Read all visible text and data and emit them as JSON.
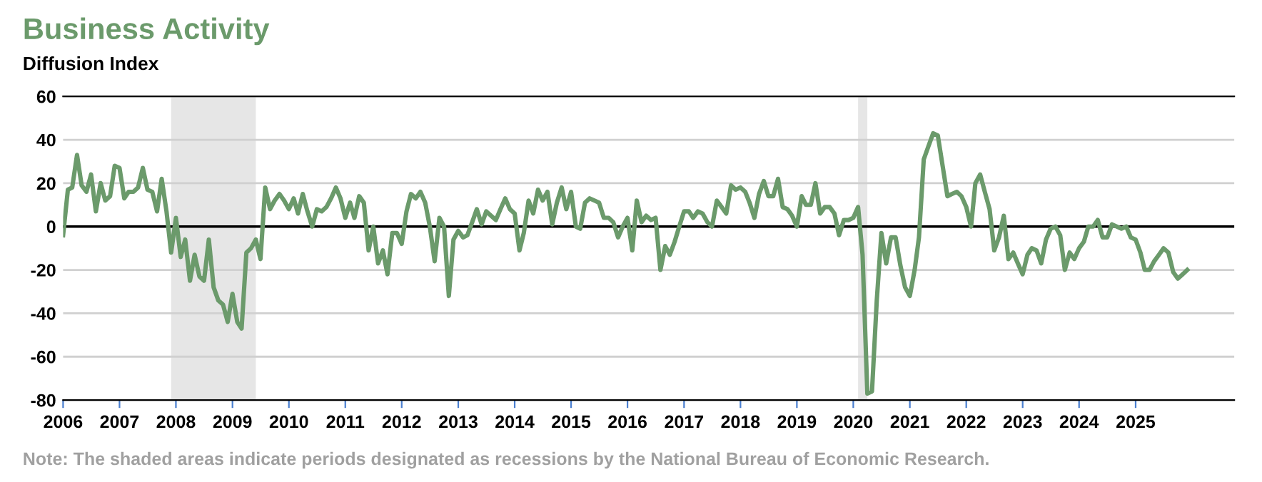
{
  "chart_data": {
    "type": "line",
    "title": "Business Activity",
    "subtitle": "Diffusion Index",
    "annotations": [
      "Note: The shaded areas indicate periods designated as recessions by the National Bureau of Economic Research."
    ],
    "x": [
      "2006-01",
      "2006-02",
      "2006-03",
      "2006-04",
      "2006-05",
      "2006-06",
      "2006-07",
      "2006-08",
      "2006-09",
      "2006-10",
      "2006-11",
      "2006-12",
      "2007-01",
      "2007-02",
      "2007-03",
      "2007-04",
      "2007-05",
      "2007-06",
      "2007-07",
      "2007-08",
      "2007-09",
      "2007-10",
      "2007-11",
      "2007-12",
      "2008-01",
      "2008-02",
      "2008-03",
      "2008-04",
      "2008-05",
      "2008-06",
      "2008-07",
      "2008-08",
      "2008-09",
      "2008-10",
      "2008-11",
      "2008-12",
      "2009-01",
      "2009-02",
      "2009-03",
      "2009-04",
      "2009-05",
      "2009-06",
      "2009-07",
      "2009-08",
      "2009-09",
      "2009-10",
      "2009-11",
      "2009-12",
      "2010-01",
      "2010-02",
      "2010-03",
      "2010-04",
      "2010-05",
      "2010-06",
      "2010-07",
      "2010-08",
      "2010-09",
      "2010-10",
      "2010-11",
      "2010-12",
      "2011-01",
      "2011-02",
      "2011-03",
      "2011-04",
      "2011-05",
      "2011-06",
      "2011-07",
      "2011-08",
      "2011-09",
      "2011-10",
      "2011-11",
      "2011-12",
      "2012-01",
      "2012-02",
      "2012-03",
      "2012-04",
      "2012-05",
      "2012-06",
      "2012-07",
      "2012-08",
      "2012-09",
      "2012-10",
      "2012-11",
      "2012-12",
      "2013-01",
      "2013-02",
      "2013-03",
      "2013-04",
      "2013-05",
      "2013-06",
      "2013-07",
      "2013-08",
      "2013-09",
      "2013-10",
      "2013-11",
      "2013-12",
      "2014-01",
      "2014-02",
      "2014-03",
      "2014-04",
      "2014-05",
      "2014-06",
      "2014-07",
      "2014-08",
      "2014-09",
      "2014-10",
      "2014-11",
      "2014-12",
      "2015-01",
      "2015-02",
      "2015-03",
      "2015-04",
      "2015-05",
      "2015-06",
      "2015-07",
      "2015-08",
      "2015-09",
      "2015-10",
      "2015-11",
      "2015-12",
      "2016-01",
      "2016-02",
      "2016-03",
      "2016-04",
      "2016-05",
      "2016-06",
      "2016-07",
      "2016-08",
      "2016-09",
      "2016-10",
      "2016-11",
      "2016-12",
      "2017-01",
      "2017-02",
      "2017-03",
      "2017-04",
      "2017-05",
      "2017-06",
      "2017-07",
      "2017-08",
      "2017-09",
      "2017-10",
      "2017-11",
      "2017-12",
      "2018-01",
      "2018-02",
      "2018-03",
      "2018-04",
      "2018-05",
      "2018-06",
      "2018-07",
      "2018-08",
      "2018-09",
      "2018-10",
      "2018-11",
      "2018-12",
      "2019-01",
      "2019-02",
      "2019-03",
      "2019-04",
      "2019-05",
      "2019-06",
      "2019-07",
      "2019-08",
      "2019-09",
      "2019-10",
      "2019-11",
      "2019-12",
      "2020-01",
      "2020-02",
      "2020-03",
      "2020-04",
      "2020-05",
      "2020-06",
      "2020-07",
      "2020-08",
      "2020-09",
      "2020-10",
      "2020-11",
      "2020-12",
      "2021-01",
      "2021-02",
      "2021-03",
      "2021-04",
      "2021-05",
      "2021-06",
      "2021-07",
      "2021-08",
      "2021-09",
      "2021-10",
      "2021-11",
      "2021-12",
      "2022-01",
      "2022-02",
      "2022-03",
      "2022-04",
      "2022-05",
      "2022-06",
      "2022-07",
      "2022-08",
      "2022-09",
      "2022-10",
      "2022-11",
      "2022-12",
      "2023-01",
      "2023-02",
      "2023-03",
      "2023-04",
      "2023-05",
      "2023-06",
      "2023-07",
      "2023-08",
      "2023-09",
      "2023-10",
      "2023-11",
      "2023-12",
      "2024-01",
      "2024-02",
      "2024-03",
      "2024-04",
      "2024-05",
      "2024-06",
      "2024-07",
      "2024-08",
      "2024-09",
      "2024-10",
      "2024-11",
      "2024-12",
      "2025-01",
      "2025-02",
      "2025-03",
      "2025-04",
      "2025-05",
      "2025-06",
      "2025-07",
      "2025-08",
      "2025-09",
      "2025-10",
      "2025-11",
      "2025-12"
    ],
    "series": [
      {
        "color": "#6b9a6b",
        "values": [
          -4,
          17,
          18,
          33,
          19,
          16,
          24,
          7,
          20,
          12,
          14,
          28,
          27,
          13,
          16,
          16,
          18,
          27,
          17,
          16,
          7,
          22,
          7,
          -12,
          4,
          -14,
          -6,
          -25,
          -13,
          -23,
          -25,
          -6,
          -28,
          -34,
          -36,
          -44,
          -31,
          -44,
          -47,
          -12,
          -10,
          -6,
          -15,
          18,
          8,
          12,
          15,
          12,
          8,
          13,
          6,
          15,
          7,
          0,
          8,
          7,
          9,
          13,
          18,
          13,
          4,
          11,
          4,
          14,
          11,
          -11,
          0,
          -17,
          -11,
          -22,
          -3,
          -3,
          -8,
          7,
          15,
          13,
          16,
          11,
          0,
          -16,
          4,
          0,
          -32,
          -6,
          -2,
          -5,
          -4,
          2,
          8,
          1,
          7,
          5,
          3,
          8,
          13,
          8,
          6,
          -11,
          -3,
          12,
          6,
          17,
          12,
          16,
          1,
          11,
          18,
          8,
          16,
          0,
          -1,
          11,
          13,
          12,
          11,
          4,
          4,
          2,
          -5,
          0,
          4,
          -11,
          12,
          2,
          5,
          3,
          4,
          -20,
          -9,
          -13,
          -7,
          0,
          7,
          7,
          4,
          7,
          6,
          2,
          0,
          12,
          9,
          6,
          19,
          17,
          18,
          16,
          11,
          4,
          15,
          21,
          14,
          14,
          22,
          9,
          8,
          5,
          0,
          14,
          10,
          10,
          20,
          6,
          9,
          9,
          6,
          -4,
          3,
          3,
          4,
          9,
          -13,
          -77,
          -76,
          -34,
          -3,
          -17,
          -5,
          -5,
          -18,
          -28,
          -32,
          -20,
          -5,
          31,
          37,
          43,
          42,
          28,
          14,
          15,
          16,
          14,
          9,
          0,
          20,
          24,
          16,
          8,
          -11,
          -5,
          5,
          -15,
          -12,
          -17,
          -22,
          -13,
          -10,
          -11,
          -17,
          -6,
          -1,
          0,
          -4,
          -20,
          -12,
          -15,
          -10,
          -7,
          0,
          0,
          3,
          -5,
          -5,
          1,
          0,
          -1,
          0,
          -5,
          -6,
          -12,
          -20,
          -20,
          -16,
          -13,
          -10,
          -12,
          -21,
          -24,
          -22,
          -20
        ]
      }
    ],
    "xlim": [
      "2006-01",
      "2026-10"
    ],
    "xticks": [
      {
        "value": "2006",
        "label": "2006"
      },
      {
        "value": "2007",
        "label": "2007"
      },
      {
        "value": "2008",
        "label": "2008"
      },
      {
        "value": "2009",
        "label": "2009"
      },
      {
        "value": "2010",
        "label": "2010"
      },
      {
        "value": "2011",
        "label": "2011"
      },
      {
        "value": "2012",
        "label": "2012"
      },
      {
        "value": "2013",
        "label": "2013"
      },
      {
        "value": "2014",
        "label": "2014"
      },
      {
        "value": "2015",
        "label": "2015"
      },
      {
        "value": "2016",
        "label": "2016"
      },
      {
        "value": "2017",
        "label": "2017"
      },
      {
        "value": "2018",
        "label": "2018"
      },
      {
        "value": "2019",
        "label": "2019"
      },
      {
        "value": "2020",
        "label": "2020"
      },
      {
        "value": "2021",
        "label": "2021"
      },
      {
        "value": "2022",
        "label": "2022"
      },
      {
        "value": "2023",
        "label": "2023"
      },
      {
        "value": "2024",
        "label": "2024"
      },
      {
        "value": "2025",
        "label": "2025"
      }
    ],
    "ylim": [
      -80,
      60
    ],
    "yticks": [
      -80,
      -60,
      -40,
      -20,
      0,
      20,
      40,
      60
    ],
    "grid": "y",
    "legend": false,
    "marker": "none",
    "line_style": "solid",
    "ref_lines": [
      {
        "axis": "y",
        "value": 0,
        "color": "#000000",
        "line_style": "solid"
      }
    ],
    "bands": [
      {
        "axis": "x",
        "from": "2007-12",
        "to": "2009-06",
        "color": "#e6e6e6"
      },
      {
        "axis": "x",
        "from": "2020-02",
        "to": "2020-04",
        "color": "#e6e6e6"
      }
    ]
  }
}
